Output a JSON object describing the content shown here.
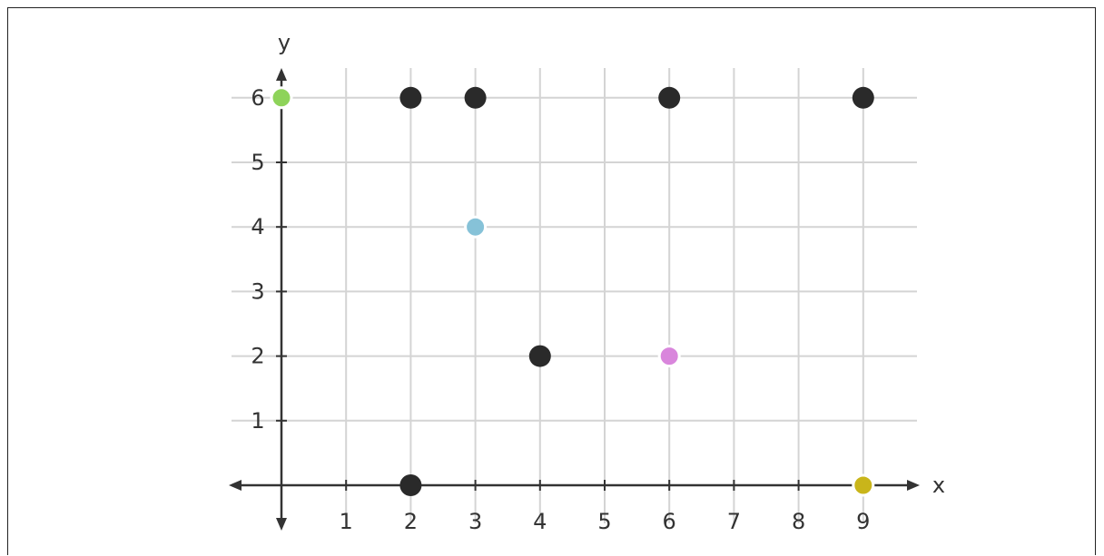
{
  "chart_data": {
    "type": "scatter",
    "title": "",
    "xlabel": "x",
    "ylabel": "y",
    "xlim": [
      0,
      9
    ],
    "ylim": [
      0,
      6
    ],
    "grid": true,
    "xticks": [
      "1",
      "2",
      "3",
      "4",
      "5",
      "6",
      "7",
      "8",
      "9"
    ],
    "yticks": [
      "1",
      "2",
      "3",
      "4",
      "5",
      "6"
    ],
    "points": [
      {
        "x": 0,
        "y": 6,
        "color": "#8ed35a"
      },
      {
        "x": 2,
        "y": 6,
        "color": "#2a2a2a"
      },
      {
        "x": 3,
        "y": 6,
        "color": "#2a2a2a"
      },
      {
        "x": 6,
        "y": 6,
        "color": "#2a2a2a"
      },
      {
        "x": 9,
        "y": 6,
        "color": "#2a2a2a"
      },
      {
        "x": 3,
        "y": 4,
        "color": "#86c2d8"
      },
      {
        "x": 4,
        "y": 2,
        "color": "#2a2a2a"
      },
      {
        "x": 6,
        "y": 2,
        "color": "#d986dc"
      },
      {
        "x": 2,
        "y": 0,
        "color": "#2a2a2a"
      },
      {
        "x": 9,
        "y": 0,
        "color": "#c9b51a"
      }
    ]
  }
}
